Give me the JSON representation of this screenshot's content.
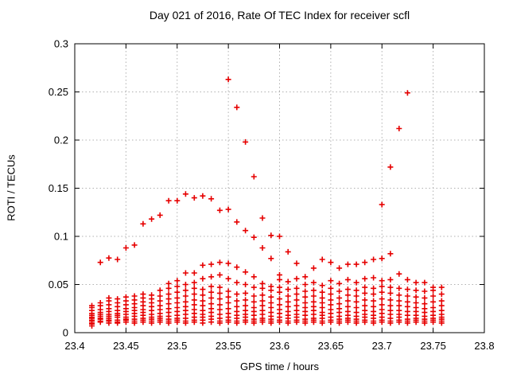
{
  "chart_data": {
    "type": "scatter",
    "title": "Day 021 of 2016, Rate Of TEC Index for receiver scfl",
    "xlabel": "GPS time / hours",
    "ylabel": "ROTI / TECUs",
    "xlim": [
      23.4,
      23.8
    ],
    "ylim": [
      0,
      0.3
    ],
    "x_ticks": [
      23.4,
      23.45,
      23.5,
      23.55,
      23.6,
      23.65,
      23.7,
      23.75,
      23.8
    ],
    "x_tick_labels": [
      "23.4",
      "23.45",
      "23.5",
      "23.55",
      "23.6",
      "23.65",
      "23.7",
      "23.75",
      "23.8"
    ],
    "y_ticks": [
      0,
      0.05,
      0.1,
      0.15,
      0.2,
      0.25,
      0.3
    ],
    "y_tick_labels": [
      "0",
      "0.05",
      "0.1",
      "0.15",
      "0.2",
      "0.25",
      "0.3"
    ],
    "grid": true,
    "legend_position": "none",
    "marker": {
      "shape": "plus",
      "color": "#e60000",
      "size": 7,
      "stroke_width": 1.6
    },
    "axis_color": "#000000",
    "grid_color": "#b0b0b0",
    "series": [
      {
        "name": "ROTI",
        "epochs": [
          {
            "t": 23.4167,
            "values": [
              0.007,
              0.009,
              0.01,
              0.012,
              0.013,
              0.015,
              0.016,
              0.018,
              0.02,
              0.023,
              0.026,
              0.028
            ]
          },
          {
            "t": 23.425,
            "values": [
              0.011,
              0.012,
              0.014,
              0.015,
              0.017,
              0.019,
              0.021,
              0.024,
              0.028,
              0.031,
              0.073
            ]
          },
          {
            "t": 23.4333,
            "values": [
              0.01,
              0.012,
              0.013,
              0.015,
              0.017,
              0.019,
              0.022,
              0.025,
              0.029,
              0.033,
              0.036,
              0.0775
            ]
          },
          {
            "t": 23.4417,
            "values": [
              0.01,
              0.011,
              0.013,
              0.016,
              0.018,
              0.02,
              0.023,
              0.027,
              0.031,
              0.035,
              0.076
            ]
          },
          {
            "t": 23.45,
            "values": [
              0.011,
              0.013,
              0.014,
              0.016,
              0.019,
              0.022,
              0.025,
              0.029,
              0.033,
              0.037,
              0.088
            ]
          },
          {
            "t": 23.4583,
            "values": [
              0.01,
              0.012,
              0.014,
              0.017,
              0.02,
              0.023,
              0.026,
              0.03,
              0.034,
              0.038,
              0.091
            ]
          },
          {
            "t": 23.4667,
            "values": [
              0.011,
              0.013,
              0.015,
              0.018,
              0.021,
              0.024,
              0.028,
              0.032,
              0.036,
              0.04,
              0.113
            ]
          },
          {
            "t": 23.475,
            "values": [
              0.01,
              0.012,
              0.014,
              0.016,
              0.019,
              0.023,
              0.027,
              0.031,
              0.035,
              0.039,
              0.118
            ]
          },
          {
            "t": 23.4833,
            "values": [
              0.011,
              0.013,
              0.015,
              0.017,
              0.02,
              0.024,
              0.028,
              0.033,
              0.038,
              0.044,
              0.122
            ]
          },
          {
            "t": 23.4917,
            "values": [
              0.01,
              0.012,
              0.014,
              0.017,
              0.021,
              0.025,
              0.03,
              0.035,
              0.04,
              0.046,
              0.051,
              0.137
            ]
          },
          {
            "t": 23.5,
            "values": [
              0.011,
              0.013,
              0.015,
              0.018,
              0.022,
              0.026,
              0.031,
              0.036,
              0.042,
              0.048,
              0.054,
              0.137
            ]
          },
          {
            "t": 23.5083,
            "values": [
              0.01,
              0.012,
              0.015,
              0.019,
              0.023,
              0.027,
              0.032,
              0.038,
              0.044,
              0.05,
              0.062,
              0.144
            ]
          },
          {
            "t": 23.5167,
            "values": [
              0.011,
              0.013,
              0.016,
              0.02,
              0.024,
              0.029,
              0.034,
              0.04,
              0.046,
              0.052,
              0.062,
              0.14
            ]
          },
          {
            "t": 23.525,
            "values": [
              0.01,
              0.013,
              0.016,
              0.019,
              0.023,
              0.028,
              0.033,
              0.039,
              0.045,
              0.056,
              0.07,
              0.142
            ]
          },
          {
            "t": 23.5333,
            "values": [
              0.011,
              0.014,
              0.017,
              0.021,
              0.025,
              0.03,
              0.036,
              0.042,
              0.048,
              0.058,
              0.071,
              0.139
            ]
          },
          {
            "t": 23.5417,
            "values": [
              0.01,
              0.012,
              0.015,
              0.019,
              0.024,
              0.029,
              0.035,
              0.041,
              0.047,
              0.06,
              0.073,
              0.127
            ]
          },
          {
            "t": 23.55,
            "values": [
              0.011,
              0.013,
              0.016,
              0.02,
              0.025,
              0.031,
              0.037,
              0.043,
              0.056,
              0.072,
              0.128,
              0.263
            ]
          },
          {
            "t": 23.5583,
            "values": [
              0.01,
              0.012,
              0.015,
              0.018,
              0.022,
              0.027,
              0.033,
              0.04,
              0.052,
              0.068,
              0.115,
              0.234
            ]
          },
          {
            "t": 23.5667,
            "values": [
              0.011,
              0.013,
              0.016,
              0.019,
              0.023,
              0.028,
              0.034,
              0.041,
              0.05,
              0.063,
              0.106,
              0.198
            ]
          },
          {
            "t": 23.575,
            "values": [
              0.01,
              0.012,
              0.014,
              0.018,
              0.022,
              0.026,
              0.032,
              0.038,
              0.047,
              0.058,
              0.099,
              0.162
            ]
          },
          {
            "t": 23.5833,
            "values": [
              0.011,
              0.013,
              0.015,
              0.019,
              0.023,
              0.028,
              0.033,
              0.039,
              0.046,
              0.051,
              0.088,
              0.119
            ]
          },
          {
            "t": 23.5917,
            "values": [
              0.01,
              0.012,
              0.014,
              0.017,
              0.021,
              0.026,
              0.031,
              0.037,
              0.044,
              0.048,
              0.077,
              0.101
            ]
          },
          {
            "t": 23.6,
            "values": [
              0.011,
              0.013,
              0.016,
              0.02,
              0.024,
              0.029,
              0.035,
              0.042,
              0.047,
              0.055,
              0.06,
              0.1
            ]
          },
          {
            "t": 23.6083,
            "values": [
              0.01,
              0.012,
              0.015,
              0.018,
              0.022,
              0.027,
              0.032,
              0.038,
              0.045,
              0.053,
              0.084
            ]
          },
          {
            "t": 23.6167,
            "values": [
              0.011,
              0.013,
              0.016,
              0.019,
              0.023,
              0.028,
              0.034,
              0.04,
              0.046,
              0.056,
              0.072
            ]
          },
          {
            "t": 23.625,
            "values": [
              0.01,
              0.012,
              0.014,
              0.018,
              0.022,
              0.026,
              0.031,
              0.037,
              0.043,
              0.05,
              0.058
            ]
          },
          {
            "t": 23.6333,
            "values": [
              0.011,
              0.013,
              0.015,
              0.019,
              0.023,
              0.027,
              0.032,
              0.038,
              0.044,
              0.052,
              0.067
            ]
          },
          {
            "t": 23.6417,
            "values": [
              0.01,
              0.012,
              0.015,
              0.018,
              0.021,
              0.026,
              0.031,
              0.036,
              0.042,
              0.049,
              0.076
            ]
          },
          {
            "t": 23.65,
            "values": [
              0.011,
              0.013,
              0.016,
              0.02,
              0.024,
              0.029,
              0.034,
              0.04,
              0.046,
              0.054,
              0.073
            ]
          },
          {
            "t": 23.6583,
            "values": [
              0.01,
              0.012,
              0.014,
              0.017,
              0.021,
              0.025,
              0.03,
              0.036,
              0.043,
              0.051,
              0.067
            ]
          },
          {
            "t": 23.6667,
            "values": [
              0.011,
              0.013,
              0.015,
              0.018,
              0.022,
              0.027,
              0.033,
              0.039,
              0.045,
              0.055,
              0.071
            ]
          },
          {
            "t": 23.675,
            "values": [
              0.01,
              0.012,
              0.014,
              0.017,
              0.021,
              0.026,
              0.032,
              0.038,
              0.044,
              0.052,
              0.071
            ]
          },
          {
            "t": 23.6833,
            "values": [
              0.011,
              0.013,
              0.016,
              0.019,
              0.023,
              0.028,
              0.034,
              0.041,
              0.047,
              0.056,
              0.073
            ]
          },
          {
            "t": 23.6917,
            "values": [
              0.01,
              0.012,
              0.015,
              0.018,
              0.022,
              0.027,
              0.033,
              0.04,
              0.046,
              0.057,
              0.076
            ]
          },
          {
            "t": 23.7,
            "values": [
              0.011,
              0.013,
              0.016,
              0.02,
              0.024,
              0.029,
              0.035,
              0.042,
              0.048,
              0.054,
              0.077,
              0.133
            ]
          },
          {
            "t": 23.7083,
            "values": [
              0.01,
              0.012,
              0.015,
              0.019,
              0.023,
              0.028,
              0.034,
              0.041,
              0.047,
              0.055,
              0.082,
              0.172
            ]
          },
          {
            "t": 23.7167,
            "values": [
              0.011,
              0.013,
              0.016,
              0.019,
              0.023,
              0.028,
              0.033,
              0.039,
              0.046,
              0.061,
              0.212
            ]
          },
          {
            "t": 23.725,
            "values": [
              0.01,
              0.012,
              0.014,
              0.018,
              0.022,
              0.027,
              0.032,
              0.038,
              0.045,
              0.055,
              0.249
            ]
          },
          {
            "t": 23.7333,
            "values": [
              0.011,
              0.013,
              0.015,
              0.018,
              0.022,
              0.026,
              0.031,
              0.037,
              0.044,
              0.052
            ]
          },
          {
            "t": 23.7417,
            "values": [
              0.01,
              0.012,
              0.014,
              0.017,
              0.021,
              0.025,
              0.03,
              0.036,
              0.043,
              0.052
            ]
          },
          {
            "t": 23.75,
            "values": [
              0.011,
              0.013,
              0.015,
              0.018,
              0.022,
              0.026,
              0.032,
              0.038,
              0.044,
              0.047
            ]
          },
          {
            "t": 23.7583,
            "values": [
              0.01,
              0.012,
              0.014,
              0.016,
              0.019,
              0.023,
              0.028,
              0.033,
              0.04,
              0.047
            ]
          }
        ]
      }
    ]
  }
}
